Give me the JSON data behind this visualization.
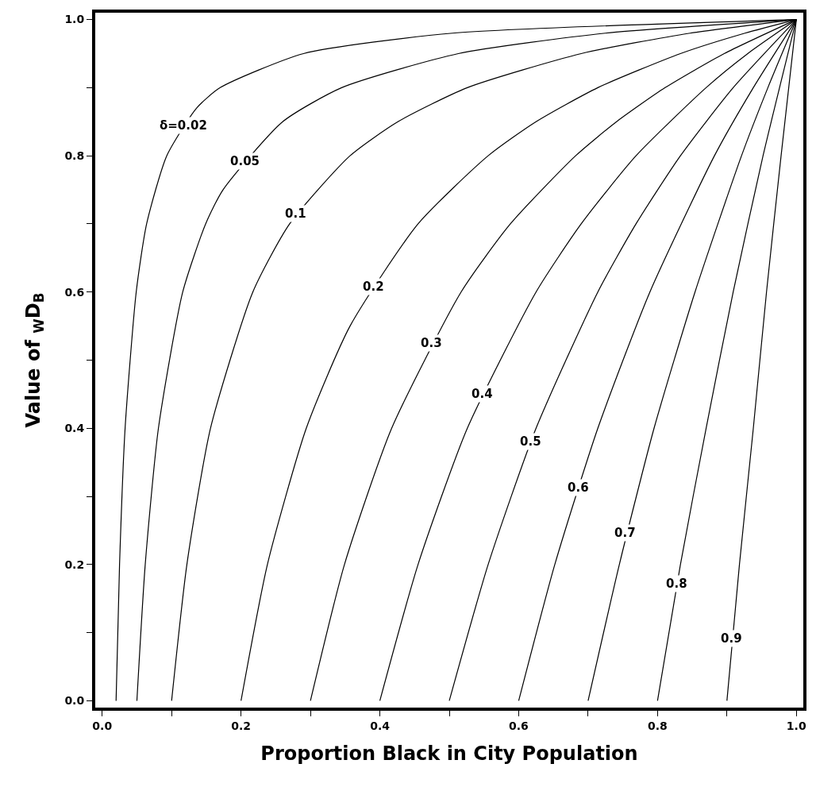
{
  "chart_data": {
    "type": "line",
    "xlabel": "Proportion Black in City Population",
    "ylabel": "Value of $_{W}$D$_{B}$",
    "xlim": [
      -0.01,
      1.01
    ],
    "ylim": [
      -0.01,
      1.01
    ],
    "xticks": [
      {
        "value": 0,
        "label": "0.0"
      },
      {
        "value": 0.1,
        "label": null
      },
      {
        "value": 0.2,
        "label": "0.2"
      },
      {
        "value": 0.3,
        "label": null
      },
      {
        "value": 0.4,
        "label": "0.4"
      },
      {
        "value": 0.5,
        "label": null
      },
      {
        "value": 0.6,
        "label": "0.6"
      },
      {
        "value": 0.7,
        "label": null
      },
      {
        "value": 0.8,
        "label": "0.8"
      },
      {
        "value": 0.9,
        "label": null
      },
      {
        "value": 1,
        "label": "1.0"
      }
    ],
    "yticks": [
      {
        "value": 0,
        "label": "0.0"
      },
      {
        "value": 0.1,
        "label": null
      },
      {
        "value": 0.2,
        "label": "0.2"
      },
      {
        "value": 0.3,
        "label": null
      },
      {
        "value": 0.4,
        "label": "0.4"
      },
      {
        "value": 0.5,
        "label": null
      },
      {
        "value": 0.6,
        "label": "0.6"
      },
      {
        "value": 0.7,
        "label": null
      },
      {
        "value": 0.8,
        "label": "0.8"
      },
      {
        "value": 0.9,
        "label": null
      },
      {
        "value": 1,
        "label": "1.0"
      }
    ],
    "series": [
      {
        "color": "#000000",
        "x": [
          0.02,
          0.025,
          0.033,
          0.049,
          0.064,
          0.093,
          0.136,
          0.17,
          0.29,
          0.505,
          1
        ],
        "values": [
          0,
          0.2,
          0.4,
          0.6,
          0.7,
          0.8,
          0.87,
          0.9,
          0.95,
          0.98,
          1
        ]
      },
      {
        "color": "#000000",
        "x": [
          0.05,
          0.062,
          0.081,
          0.116,
          0.149,
          0.174,
          0.26,
          0.345,
          0.513,
          0.725,
          1
        ],
        "values": [
          0,
          0.2,
          0.4,
          0.6,
          0.7,
          0.75,
          0.85,
          0.9,
          0.95,
          0.98,
          1
        ]
      },
      {
        "color": "#000000",
        "x": [
          0.1,
          0.122,
          0.156,
          0.217,
          0.27,
          0.357,
          0.426,
          0.526,
          0.69,
          0.847,
          1
        ],
        "values": [
          0,
          0.2,
          0.4,
          0.6,
          0.7,
          0.8,
          0.85,
          0.9,
          0.95,
          0.98,
          1
        ]
      },
      {
        "color": "#000000",
        "x": [
          0.2,
          0.238,
          0.294,
          0.357,
          0.455,
          0.556,
          0.625,
          0.714,
          0.833,
          0.926,
          1
        ],
        "values": [
          0,
          0.2,
          0.4,
          0.55,
          0.7,
          0.8,
          0.85,
          0.9,
          0.95,
          0.98,
          1
        ]
      },
      {
        "color": "#000000",
        "x": [
          0.3,
          0.349,
          0.417,
          0.517,
          0.588,
          0.682,
          0.741,
          0.811,
          0.896,
          1
        ],
        "values": [
          0,
          0.2,
          0.4,
          0.6,
          0.7,
          0.8,
          0.85,
          0.9,
          0.95,
          1
        ]
      },
      {
        "color": "#000000",
        "x": [
          0.4,
          0.455,
          0.526,
          0.625,
          0.69,
          0.769,
          0.87,
          0.93,
          1
        ],
        "values": [
          0,
          0.2,
          0.4,
          0.6,
          0.7,
          0.8,
          0.9,
          0.95,
          1
        ]
      },
      {
        "color": "#000000",
        "x": [
          0.5,
          0.556,
          0.625,
          0.714,
          0.769,
          0.833,
          0.909,
          1
        ],
        "values": [
          0,
          0.2,
          0.4,
          0.6,
          0.7,
          0.8,
          0.9,
          1
        ]
      },
      {
        "color": "#000000",
        "x": [
          0.6,
          0.652,
          0.714,
          0.789,
          0.882,
          0.938,
          1
        ],
        "values": [
          0,
          0.2,
          0.4,
          0.6,
          0.8,
          0.9,
          1
        ]
      },
      {
        "color": "#000000",
        "x": [
          0.7,
          0.745,
          0.795,
          0.854,
          0.921,
          0.959,
          1
        ],
        "values": [
          0,
          0.2,
          0.4,
          0.6,
          0.8,
          0.9,
          1
        ]
      },
      {
        "color": "#000000",
        "x": [
          0.8,
          0.833,
          0.87,
          0.909,
          0.952,
          1
        ],
        "values": [
          0,
          0.2,
          0.4,
          0.6,
          0.8,
          1
        ]
      },
      {
        "color": "#000000",
        "x": [
          0.9,
          0.918,
          0.938,
          0.957,
          0.978,
          1
        ],
        "values": [
          0,
          0.2,
          0.4,
          0.6,
          0.8,
          1
        ]
      }
    ],
    "annotations": [
      {
        "text": "δ=0.02",
        "x": 0.117,
        "y": 0.844
      },
      {
        "text": "0.05",
        "x": 0.205,
        "y": 0.792
      },
      {
        "text": "0.1",
        "x": 0.279,
        "y": 0.715
      },
      {
        "text": "0.2",
        "x": 0.391,
        "y": 0.608
      },
      {
        "text": "0.3",
        "x": 0.474,
        "y": 0.525
      },
      {
        "text": "0.4",
        "x": 0.548,
        "y": 0.45
      },
      {
        "text": "0.5",
        "x": 0.617,
        "y": 0.381
      },
      {
        "text": "0.6",
        "x": 0.686,
        "y": 0.313
      },
      {
        "text": "0.7",
        "x": 0.753,
        "y": 0.246
      },
      {
        "text": "0.8",
        "x": 0.828,
        "y": 0.172
      },
      {
        "text": "0.9",
        "x": 0.906,
        "y": 0.092
      }
    ]
  }
}
